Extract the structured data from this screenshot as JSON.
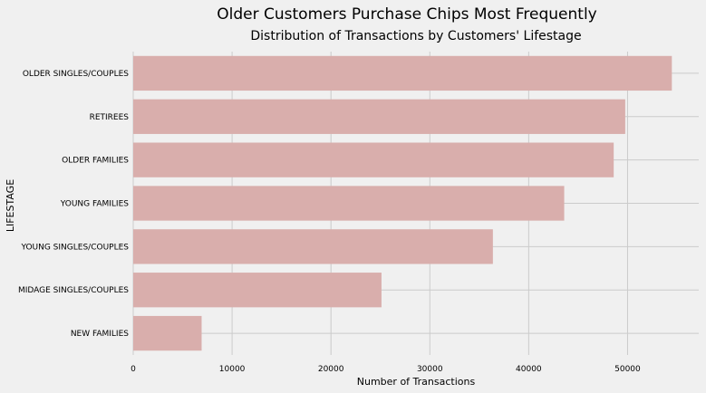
{
  "chart_data": {
    "type": "bar",
    "orientation": "horizontal",
    "suptitle": "Older Customers Purchase Chips Most Frequently",
    "title": "Distribution of Transactions by Customers' Lifestage",
    "xlabel": "Number of Transactions",
    "ylabel": "LIFESTAGE",
    "categories": [
      "OLDER SINGLES/COUPLES",
      "RETIREES",
      "OLDER FAMILIES",
      "YOUNG FAMILIES",
      "YOUNG SINGLES/COUPLES",
      "MIDAGE SINGLES/COUPLES",
      "NEW FAMILIES"
    ],
    "values": [
      54479,
      49763,
      48596,
      43592,
      36377,
      25110,
      6919
    ],
    "xlim": [
      0,
      57200
    ],
    "xticks": [
      0,
      10000,
      20000,
      30000,
      40000,
      50000
    ],
    "grid": true,
    "colors": {
      "bar": "#d9aeac",
      "background": "#f0f0f0",
      "grid": "#cbcbcb"
    }
  }
}
